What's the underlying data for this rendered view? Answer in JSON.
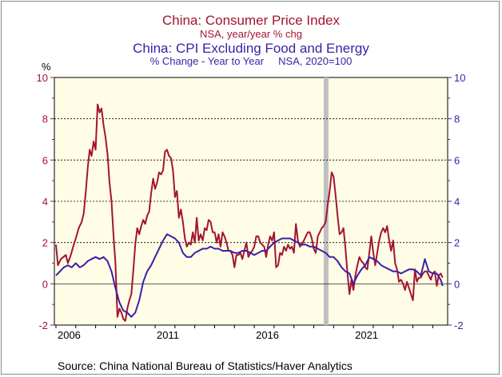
{
  "titles": {
    "line1": "China: Consumer Price Index",
    "line2": "NSA, year/year % chg",
    "line3": "China: CPI Excluding Food and Energy",
    "line4": "% Change - Year to Year     NSA, 2020=100"
  },
  "source": "Source:  China National Bureau of Statistics/Haver Analytics",
  "colors": {
    "cpi": "#a31433",
    "core": "#3b1fa6",
    "plot_bg": "#fffde6",
    "recession_bar": "#c0c0c0"
  },
  "chart_data": {
    "type": "line",
    "unit_label": "%",
    "left_axis_ticks": [
      10,
      8,
      6,
      4,
      2,
      0,
      -2
    ],
    "right_axis_ticks": [
      10,
      8,
      6,
      4,
      2,
      0,
      -2
    ],
    "ylim": [
      -2,
      10
    ],
    "x_range": [
      2005.92,
      2024.0
    ],
    "x_tick_labels": [
      "2006",
      "2011",
      "2016",
      "2021"
    ],
    "x_tick_values": [
      2006,
      2011,
      2016,
      2021
    ],
    "shaded_period": [
      2019.5,
      2019.72
    ],
    "gridlines": [
      2,
      4,
      6,
      8
    ],
    "series": [
      {
        "axis": "left",
        "points": [
          [
            2006.0,
            1.9
          ],
          [
            2006.1,
            0.9
          ],
          [
            2006.25,
            1.2
          ],
          [
            2006.5,
            1.4
          ],
          [
            2006.6,
            1.0
          ],
          [
            2006.75,
            1.4
          ],
          [
            2006.9,
            1.9
          ],
          [
            2007.0,
            2.2
          ],
          [
            2007.15,
            2.7
          ],
          [
            2007.3,
            3.0
          ],
          [
            2007.4,
            3.4
          ],
          [
            2007.5,
            4.4
          ],
          [
            2007.6,
            5.6
          ],
          [
            2007.7,
            6.5
          ],
          [
            2007.8,
            6.2
          ],
          [
            2007.9,
            6.9
          ],
          [
            2008.0,
            6.5
          ],
          [
            2008.1,
            8.7
          ],
          [
            2008.2,
            8.3
          ],
          [
            2008.3,
            8.5
          ],
          [
            2008.4,
            7.7
          ],
          [
            2008.5,
            7.1
          ],
          [
            2008.6,
            6.3
          ],
          [
            2008.7,
            4.9
          ],
          [
            2008.8,
            4.0
          ],
          [
            2008.9,
            2.4
          ],
          [
            2009.0,
            1.0
          ],
          [
            2009.1,
            -1.6
          ],
          [
            2009.2,
            -1.2
          ],
          [
            2009.3,
            -1.4
          ],
          [
            2009.4,
            -1.7
          ],
          [
            2009.5,
            -1.8
          ],
          [
            2009.6,
            -1.2
          ],
          [
            2009.7,
            -0.8
          ],
          [
            2009.8,
            -0.5
          ],
          [
            2009.9,
            0.6
          ],
          [
            2010.0,
            1.9
          ],
          [
            2010.1,
            2.7
          ],
          [
            2010.2,
            2.4
          ],
          [
            2010.3,
            2.8
          ],
          [
            2010.4,
            3.1
          ],
          [
            2010.5,
            2.9
          ],
          [
            2010.6,
            3.3
          ],
          [
            2010.7,
            3.5
          ],
          [
            2010.8,
            4.4
          ],
          [
            2010.9,
            5.1
          ],
          [
            2011.0,
            4.6
          ],
          [
            2011.1,
            4.9
          ],
          [
            2011.2,
            5.4
          ],
          [
            2011.3,
            5.3
          ],
          [
            2011.4,
            5.5
          ],
          [
            2011.5,
            6.4
          ],
          [
            2011.6,
            6.5
          ],
          [
            2011.7,
            6.2
          ],
          [
            2011.8,
            6.1
          ],
          [
            2011.9,
            5.5
          ],
          [
            2012.0,
            4.2
          ],
          [
            2012.1,
            4.5
          ],
          [
            2012.2,
            3.2
          ],
          [
            2012.3,
            3.6
          ],
          [
            2012.4,
            3.0
          ],
          [
            2012.5,
            2.2
          ],
          [
            2012.6,
            1.8
          ],
          [
            2012.7,
            2.0
          ],
          [
            2012.8,
            1.9
          ],
          [
            2012.9,
            2.5
          ],
          [
            2013.0,
            2.0
          ],
          [
            2013.1,
            3.2
          ],
          [
            2013.2,
            2.1
          ],
          [
            2013.3,
            2.4
          ],
          [
            2013.4,
            2.1
          ],
          [
            2013.5,
            2.7
          ],
          [
            2013.6,
            2.6
          ],
          [
            2013.7,
            3.1
          ],
          [
            2013.8,
            3.0
          ],
          [
            2013.9,
            2.5
          ],
          [
            2014.0,
            2.5
          ],
          [
            2014.1,
            2.0
          ],
          [
            2014.2,
            2.4
          ],
          [
            2014.3,
            1.8
          ],
          [
            2014.4,
            2.5
          ],
          [
            2014.5,
            2.3
          ],
          [
            2014.6,
            2.0
          ],
          [
            2014.7,
            1.6
          ],
          [
            2014.8,
            1.6
          ],
          [
            2014.9,
            1.4
          ],
          [
            2015.0,
            0.8
          ],
          [
            2015.1,
            1.4
          ],
          [
            2015.2,
            1.4
          ],
          [
            2015.3,
            1.5
          ],
          [
            2015.4,
            1.2
          ],
          [
            2015.5,
            1.6
          ],
          [
            2015.6,
            2.0
          ],
          [
            2015.7,
            1.3
          ],
          [
            2015.8,
            1.5
          ],
          [
            2015.9,
            1.6
          ],
          [
            2016.0,
            1.8
          ],
          [
            2016.1,
            2.3
          ],
          [
            2016.2,
            2.3
          ],
          [
            2016.3,
            2.0
          ],
          [
            2016.4,
            1.9
          ],
          [
            2016.5,
            1.8
          ],
          [
            2016.6,
            1.3
          ],
          [
            2016.7,
            1.9
          ],
          [
            2016.8,
            2.3
          ],
          [
            2016.9,
            2.1
          ],
          [
            2017.0,
            2.5
          ],
          [
            2017.1,
            0.8
          ],
          [
            2017.2,
            0.9
          ],
          [
            2017.3,
            1.5
          ],
          [
            2017.4,
            1.4
          ],
          [
            2017.5,
            1.8
          ],
          [
            2017.6,
            1.6
          ],
          [
            2017.7,
            1.9
          ],
          [
            2017.8,
            1.7
          ],
          [
            2017.9,
            1.8
          ],
          [
            2018.0,
            1.5
          ],
          [
            2018.1,
            2.9
          ],
          [
            2018.2,
            2.1
          ],
          [
            2018.3,
            1.8
          ],
          [
            2018.4,
            1.9
          ],
          [
            2018.5,
            2.1
          ],
          [
            2018.6,
            2.3
          ],
          [
            2018.7,
            2.5
          ],
          [
            2018.8,
            2.5
          ],
          [
            2018.9,
            2.2
          ],
          [
            2019.0,
            1.7
          ],
          [
            2019.1,
            1.5
          ],
          [
            2019.2,
            2.3
          ],
          [
            2019.3,
            2.5
          ],
          [
            2019.4,
            2.7
          ],
          [
            2019.5,
            2.8
          ],
          [
            2019.6,
            3.0
          ],
          [
            2019.7,
            3.8
          ],
          [
            2019.8,
            4.5
          ],
          [
            2019.9,
            5.4
          ],
          [
            2020.0,
            5.2
          ],
          [
            2020.1,
            4.3
          ],
          [
            2020.2,
            3.3
          ],
          [
            2020.3,
            2.4
          ],
          [
            2020.4,
            2.5
          ],
          [
            2020.5,
            2.7
          ],
          [
            2020.6,
            1.7
          ],
          [
            2020.7,
            0.5
          ],
          [
            2020.8,
            -0.5
          ],
          [
            2020.9,
            0.2
          ],
          [
            2021.0,
            -0.3
          ],
          [
            2021.1,
            0.4
          ],
          [
            2021.2,
            0.9
          ],
          [
            2021.3,
            1.3
          ],
          [
            2021.4,
            1.1
          ],
          [
            2021.5,
            1.0
          ],
          [
            2021.6,
            0.8
          ],
          [
            2021.7,
            0.7
          ],
          [
            2021.8,
            1.5
          ],
          [
            2021.9,
            2.3
          ],
          [
            2022.0,
            1.5
          ],
          [
            2022.1,
            0.9
          ],
          [
            2022.2,
            1.5
          ],
          [
            2022.3,
            2.1
          ],
          [
            2022.4,
            2.5
          ],
          [
            2022.5,
            2.7
          ],
          [
            2022.6,
            2.5
          ],
          [
            2022.7,
            2.8
          ],
          [
            2022.8,
            2.1
          ],
          [
            2022.9,
            1.6
          ],
          [
            2023.0,
            2.1
          ],
          [
            2023.1,
            1.0
          ],
          [
            2023.2,
            0.7
          ],
          [
            2023.3,
            0.1
          ],
          [
            2023.4,
            0.2
          ],
          [
            2023.5,
            0.0
          ],
          [
            2023.6,
            -0.3
          ],
          [
            2023.7,
            0.1
          ],
          [
            2023.8,
            -0.2
          ],
          [
            2023.9,
            -0.5
          ],
          [
            2024.0,
            -0.8
          ],
          [
            2024.1,
            0.7
          ],
          [
            2024.2,
            0.1
          ],
          [
            2024.3,
            0.3
          ],
          [
            2024.4,
            0.3
          ],
          [
            2024.5,
            0.5
          ],
          [
            2024.6,
            0.6
          ],
          [
            2024.7,
            0.6
          ],
          [
            2024.8,
            0.4
          ],
          [
            2024.9,
            0.2
          ],
          [
            2025.0,
            0.5
          ],
          [
            2025.1,
            0.6
          ],
          [
            2025.2,
            -0.1
          ],
          [
            2025.3,
            0.4
          ],
          [
            2025.4,
            0.5
          ],
          [
            2025.5,
            0.3
          ]
        ]
      },
      {
        "axis": "right",
        "points": [
          [
            2006.0,
            0.4
          ],
          [
            2006.2,
            0.6
          ],
          [
            2006.4,
            0.8
          ],
          [
            2006.6,
            0.9
          ],
          [
            2006.8,
            0.8
          ],
          [
            2007.0,
            1.0
          ],
          [
            2007.2,
            0.8
          ],
          [
            2007.4,
            0.9
          ],
          [
            2007.6,
            1.1
          ],
          [
            2007.8,
            1.2
          ],
          [
            2008.0,
            1.3
          ],
          [
            2008.2,
            1.2
          ],
          [
            2008.4,
            1.3
          ],
          [
            2008.6,
            1.1
          ],
          [
            2008.8,
            0.6
          ],
          [
            2009.0,
            -0.2
          ],
          [
            2009.2,
            -0.9
          ],
          [
            2009.4,
            -1.3
          ],
          [
            2009.6,
            -1.4
          ],
          [
            2009.8,
            -1.6
          ],
          [
            2010.0,
            -1.4
          ],
          [
            2010.2,
            -0.8
          ],
          [
            2010.4,
            0.1
          ],
          [
            2010.6,
            0.6
          ],
          [
            2010.8,
            0.9
          ],
          [
            2011.0,
            1.3
          ],
          [
            2011.2,
            1.7
          ],
          [
            2011.4,
            2.1
          ],
          [
            2011.6,
            2.4
          ],
          [
            2011.8,
            2.3
          ],
          [
            2012.0,
            2.2
          ],
          [
            2012.2,
            2.0
          ],
          [
            2012.4,
            1.5
          ],
          [
            2012.6,
            1.3
          ],
          [
            2012.8,
            1.3
          ],
          [
            2013.0,
            1.5
          ],
          [
            2013.2,
            1.6
          ],
          [
            2013.4,
            1.7
          ],
          [
            2013.6,
            1.7
          ],
          [
            2013.8,
            1.8
          ],
          [
            2014.0,
            1.7
          ],
          [
            2014.2,
            1.7
          ],
          [
            2014.4,
            1.6
          ],
          [
            2014.6,
            1.6
          ],
          [
            2014.8,
            1.6
          ],
          [
            2015.0,
            1.5
          ],
          [
            2015.2,
            1.5
          ],
          [
            2015.4,
            1.6
          ],
          [
            2015.6,
            1.6
          ],
          [
            2015.8,
            1.5
          ],
          [
            2016.0,
            1.4
          ],
          [
            2016.2,
            1.5
          ],
          [
            2016.4,
            1.6
          ],
          [
            2016.6,
            1.6
          ],
          [
            2016.8,
            1.8
          ],
          [
            2017.0,
            2.0
          ],
          [
            2017.2,
            2.1
          ],
          [
            2017.4,
            2.2
          ],
          [
            2017.6,
            2.2
          ],
          [
            2017.8,
            2.2
          ],
          [
            2018.0,
            2.1
          ],
          [
            2018.2,
            2.0
          ],
          [
            2018.4,
            1.9
          ],
          [
            2018.6,
            1.9
          ],
          [
            2018.8,
            1.8
          ],
          [
            2019.0,
            1.8
          ],
          [
            2019.2,
            1.7
          ],
          [
            2019.4,
            1.6
          ],
          [
            2019.6,
            1.5
          ],
          [
            2019.8,
            1.3
          ],
          [
            2020.0,
            1.3
          ],
          [
            2020.2,
            1.1
          ],
          [
            2020.4,
            0.8
          ],
          [
            2020.6,
            0.6
          ],
          [
            2020.8,
            0.5
          ],
          [
            2021.0,
            0.0
          ],
          [
            2021.2,
            0.4
          ],
          [
            2021.4,
            0.7
          ],
          [
            2021.6,
            0.9
          ],
          [
            2021.8,
            1.3
          ],
          [
            2022.0,
            1.2
          ],
          [
            2022.2,
            1.1
          ],
          [
            2022.4,
            0.9
          ],
          [
            2022.6,
            0.8
          ],
          [
            2022.8,
            0.7
          ],
          [
            2023.0,
            0.6
          ],
          [
            2023.2,
            0.6
          ],
          [
            2023.4,
            0.5
          ],
          [
            2023.6,
            0.6
          ],
          [
            2023.8,
            0.7
          ],
          [
            2024.0,
            0.7
          ],
          [
            2024.2,
            0.6
          ],
          [
            2024.4,
            0.4
          ],
          [
            2024.6,
            1.2
          ],
          [
            2024.8,
            0.6
          ],
          [
            2025.0,
            0.5
          ],
          [
            2025.2,
            0.5
          ],
          [
            2025.4,
            0.2
          ],
          [
            2025.5,
            -0.1
          ]
        ]
      }
    ]
  }
}
